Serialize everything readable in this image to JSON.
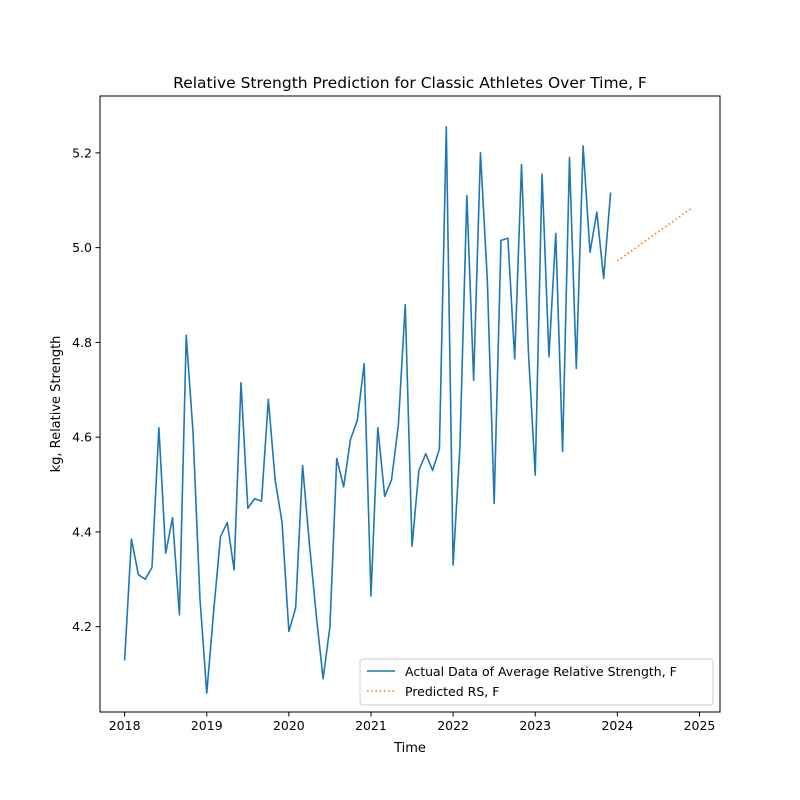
{
  "chart_data": {
    "type": "line",
    "title": "Relative Strength Prediction for Classic Athletes Over Time, F",
    "xlabel": "Time",
    "ylabel": "kg, Relative Strength",
    "xlim": [
      2017.7,
      2025.25
    ],
    "ylim": [
      4.02,
      5.32
    ],
    "x_ticks": [
      2018,
      2019,
      2020,
      2021,
      2022,
      2023,
      2024,
      2025
    ],
    "x_tick_labels": [
      "2018",
      "2019",
      "2020",
      "2021",
      "2022",
      "2023",
      "2024",
      "2025"
    ],
    "y_ticks": [
      4.2,
      4.4,
      4.6,
      4.8,
      5.0,
      5.2
    ],
    "y_tick_labels": [
      "4.2",
      "4.4",
      "4.6",
      "4.8",
      "5.0",
      "5.2"
    ],
    "grid": false,
    "legend_position": "lower-right",
    "series": [
      {
        "name": "Actual Data of Average Relative Strength, F",
        "color": "#1f77b4",
        "style": "solid",
        "x": [
          2018.0,
          2018.083,
          2018.167,
          2018.25,
          2018.333,
          2018.417,
          2018.5,
          2018.583,
          2018.667,
          2018.75,
          2018.833,
          2018.917,
          2019.0,
          2019.083,
          2019.167,
          2019.25,
          2019.333,
          2019.417,
          2019.5,
          2019.583,
          2019.667,
          2019.75,
          2019.833,
          2019.917,
          2020.0,
          2020.083,
          2020.167,
          2020.25,
          2020.333,
          2020.417,
          2020.5,
          2020.583,
          2020.667,
          2020.75,
          2020.833,
          2020.917,
          2021.0,
          2021.083,
          2021.167,
          2021.25,
          2021.333,
          2021.417,
          2021.5,
          2021.583,
          2021.667,
          2021.75,
          2021.833,
          2021.917,
          2022.0,
          2022.083,
          2022.167,
          2022.25,
          2022.333,
          2022.417,
          2022.5,
          2022.583,
          2022.667,
          2022.75,
          2022.833,
          2022.917,
          2023.0,
          2023.083,
          2023.167,
          2023.25,
          2023.333,
          2023.417,
          2023.5,
          2023.583,
          2023.667,
          2023.75,
          2023.833,
          2023.917
        ],
        "y": [
          4.13,
          4.385,
          4.31,
          4.3,
          4.325,
          4.62,
          4.355,
          4.43,
          4.225,
          4.815,
          4.61,
          4.26,
          4.06,
          4.23,
          4.39,
          4.42,
          4.32,
          4.715,
          4.45,
          4.47,
          4.465,
          4.68,
          4.51,
          4.42,
          4.19,
          4.24,
          4.54,
          4.375,
          4.225,
          4.09,
          4.2,
          4.555,
          4.495,
          4.595,
          4.635,
          4.755,
          4.265,
          4.62,
          4.475,
          4.51,
          4.625,
          4.88,
          4.37,
          4.53,
          4.565,
          4.53,
          4.575,
          5.255,
          4.33,
          4.58,
          5.11,
          4.72,
          5.2,
          4.93,
          4.46,
          5.015,
          5.02,
          4.765,
          5.175,
          4.78,
          4.52,
          5.155,
          4.77,
          5.03,
          4.57,
          5.19,
          4.745,
          5.215,
          4.99,
          5.075,
          4.935,
          5.115
        ]
      },
      {
        "name": "Predicted RS, F",
        "color": "#ff7f0e",
        "style": "dotted",
        "x": [
          2024.0,
          2024.917
        ],
        "y": [
          4.972,
          5.085
        ]
      }
    ]
  }
}
